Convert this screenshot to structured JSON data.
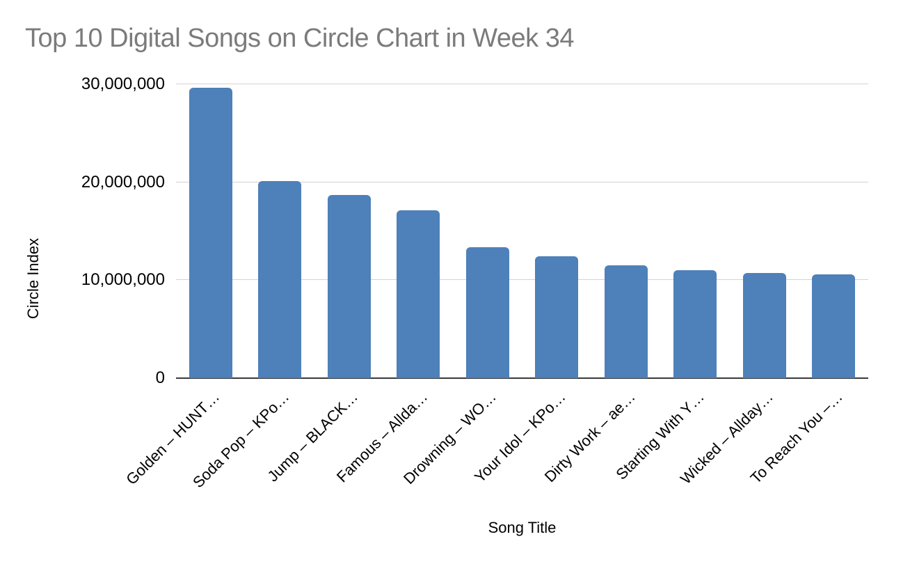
{
  "page": {
    "background": "#ffffff"
  },
  "chart_data": {
    "type": "bar",
    "title": "Top 10 Digital Songs on Circle Chart in Week 34",
    "xlabel": "Song Title",
    "ylabel": "Circle Index",
    "ylim": [
      0,
      30000000
    ],
    "yticks": [
      0,
      10000000,
      20000000,
      30000000
    ],
    "ytick_labels": [
      "0",
      "10,000,000",
      "20,000,000",
      "30,000,000"
    ],
    "grid": "horizontal",
    "legend": "none",
    "categories": [
      "Golden – HUNT…",
      "Soda Pop – KPo…",
      "Jump – BLACK…",
      "Famous – Allda…",
      "Drowning – WO…",
      "Your Idol – KPo…",
      "Dirty Work – ae…",
      "Starting With Y…",
      "Wicked – Allday…",
      "To Reach You –…"
    ],
    "values": [
      29650000,
      20100000,
      18700000,
      17150000,
      13400000,
      12450000,
      11550000,
      11000000,
      10750000,
      10600000
    ],
    "bar_color": "#4e80ba",
    "gridline_color": "#d2d2d2",
    "axis_line_color": "#3a3a3a",
    "title_color": "#7b7b7b",
    "label_color": "#000000"
  }
}
